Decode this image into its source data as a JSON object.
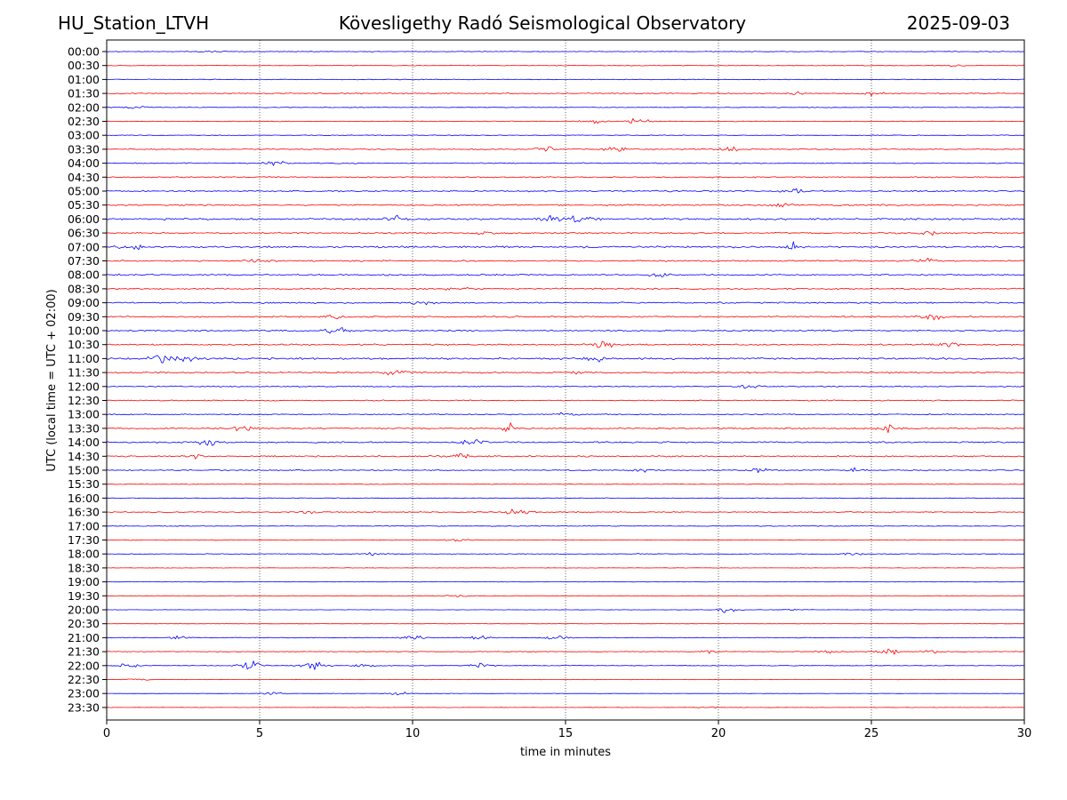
{
  "header": {
    "station": "HU_Station_LTVH",
    "title": "Kövesligethy Radó Seismological Observatory",
    "date": "2025-09-03"
  },
  "chart_data": {
    "type": "line",
    "subtype": "helicorder",
    "title": "Kövesligethy Radó Seismological Observatory",
    "xlabel": "time in minutes",
    "ylabel": "UTC (local time = UTC + 02:00)",
    "xlim": [
      0,
      30
    ],
    "x_ticks": [
      "0",
      "5",
      "10",
      "15",
      "20",
      "25",
      "30"
    ],
    "x_tick_values": [
      0,
      5,
      10,
      15,
      20,
      25,
      30
    ],
    "grid": "vertical dotted at each x tick",
    "row_labels": [
      "00:00",
      "00:30",
      "01:00",
      "01:30",
      "02:00",
      "02:30",
      "03:00",
      "03:30",
      "04:00",
      "04:30",
      "05:00",
      "05:30",
      "06:00",
      "06:30",
      "07:00",
      "07:30",
      "08:00",
      "08:30",
      "09:00",
      "09:30",
      "10:00",
      "10:30",
      "11:00",
      "11:30",
      "12:00",
      "12:30",
      "13:00",
      "13:30",
      "14:00",
      "14:30",
      "15:00",
      "15:30",
      "16:00",
      "16:30",
      "17:00",
      "17:30",
      "18:00",
      "18:30",
      "19:00",
      "19:30",
      "20:00",
      "20:30",
      "21:00",
      "21:30",
      "22:00",
      "22:30",
      "23:00",
      "23:30"
    ],
    "colors": [
      "#0000ff",
      "#ff0000"
    ],
    "color_cycle": "alternating blue, red per row",
    "noise_level": [
      1,
      1,
      1,
      1.5,
      1,
      1,
      1,
      1.5,
      1.5,
      1.5,
      2,
      2,
      2.5,
      2,
      2.5,
      2,
      2,
      2,
      2,
      2,
      2,
      2,
      2.5,
      2,
      1.5,
      1.5,
      1.5,
      2,
      2,
      2,
      1.5,
      1,
      1,
      1.5,
      1,
      1,
      1,
      0.5,
      0.5,
      0.5,
      0.5,
      0.5,
      1,
      1,
      1,
      0.5,
      0.5,
      0.5
    ],
    "events": [
      {
        "row": "00:00",
        "minute": 3.5,
        "amplitude": 1.5
      },
      {
        "row": "00:30",
        "minute": 27.7,
        "amplitude": 1.5
      },
      {
        "row": "01:30",
        "minute": 25.0,
        "amplitude": 3
      },
      {
        "row": "01:30",
        "minute": 22.5,
        "amplitude": 2
      },
      {
        "row": "02:00",
        "minute": 1.0,
        "amplitude": 2
      },
      {
        "row": "02:30",
        "minute": 15.9,
        "amplitude": 4
      },
      {
        "row": "02:30",
        "minute": 17.4,
        "amplitude": 4
      },
      {
        "row": "03:30",
        "minute": 14.3,
        "amplitude": 4
      },
      {
        "row": "03:30",
        "minute": 16.7,
        "amplitude": 5
      },
      {
        "row": "03:30",
        "minute": 20.3,
        "amplitude": 3.5
      },
      {
        "row": "04:00",
        "minute": 5.5,
        "amplitude": 4
      },
      {
        "row": "05:00",
        "minute": 22.5,
        "amplitude": 3
      },
      {
        "row": "05:30",
        "minute": 22.0,
        "amplitude": 3
      },
      {
        "row": "06:00",
        "minute": 9.5,
        "amplitude": 4.5
      },
      {
        "row": "06:00",
        "minute": 14.5,
        "amplitude": 5
      },
      {
        "row": "06:00",
        "minute": 15.5,
        "amplitude": 6
      },
      {
        "row": "06:30",
        "minute": 12.3,
        "amplitude": 3.5
      },
      {
        "row": "06:30",
        "minute": 27.0,
        "amplitude": 3
      },
      {
        "row": "07:00",
        "minute": 0.8,
        "amplitude": 4
      },
      {
        "row": "07:00",
        "minute": 22.4,
        "amplitude": 8
      },
      {
        "row": "07:30",
        "minute": 5.0,
        "amplitude": 3
      },
      {
        "row": "07:30",
        "minute": 26.8,
        "amplitude": 3.5
      },
      {
        "row": "08:00",
        "minute": 18.0,
        "amplitude": 3
      },
      {
        "row": "08:30",
        "minute": 11.5,
        "amplitude": 4
      },
      {
        "row": "09:00",
        "minute": 10.3,
        "amplitude": 4
      },
      {
        "row": "09:30",
        "minute": 7.5,
        "amplitude": 3
      },
      {
        "row": "09:30",
        "minute": 27.0,
        "amplitude": 4
      },
      {
        "row": "10:00",
        "minute": 7.5,
        "amplitude": 5
      },
      {
        "row": "10:30",
        "minute": 16.2,
        "amplitude": 6
      },
      {
        "row": "10:30",
        "minute": 27.5,
        "amplitude": 3
      },
      {
        "row": "11:00",
        "minute": 1.8,
        "amplitude": 6
      },
      {
        "row": "11:00",
        "minute": 2.7,
        "amplitude": 4
      },
      {
        "row": "11:00",
        "minute": 16.0,
        "amplitude": 4
      },
      {
        "row": "11:30",
        "minute": 9.5,
        "amplitude": 6
      },
      {
        "row": "11:30",
        "minute": 15.3,
        "amplitude": 4
      },
      {
        "row": "12:00",
        "minute": 21.0,
        "amplitude": 3
      },
      {
        "row": "13:00",
        "minute": 15.0,
        "amplitude": 3
      },
      {
        "row": "13:30",
        "minute": 13.1,
        "amplitude": 14
      },
      {
        "row": "13:30",
        "minute": 4.5,
        "amplitude": 4
      },
      {
        "row": "13:30",
        "minute": 25.5,
        "amplitude": 6
      },
      {
        "row": "14:00",
        "minute": 3.3,
        "amplitude": 6
      },
      {
        "row": "14:00",
        "minute": 12.0,
        "amplitude": 5
      },
      {
        "row": "14:30",
        "minute": 2.9,
        "amplitude": 8
      },
      {
        "row": "14:30",
        "minute": 11.5,
        "amplitude": 4
      },
      {
        "row": "15:00",
        "minute": 17.5,
        "amplitude": 3
      },
      {
        "row": "15:00",
        "minute": 21.3,
        "amplitude": 3.5
      },
      {
        "row": "15:00",
        "minute": 24.5,
        "amplitude": 3
      },
      {
        "row": "16:30",
        "minute": 13.5,
        "amplitude": 7
      },
      {
        "row": "16:30",
        "minute": 6.5,
        "amplitude": 2.5
      },
      {
        "row": "17:30",
        "minute": 11.5,
        "amplitude": 2
      },
      {
        "row": "18:00",
        "minute": 8.8,
        "amplitude": 2
      },
      {
        "row": "18:00",
        "minute": 24.3,
        "amplitude": 2.5
      },
      {
        "row": "19:30",
        "minute": 11.5,
        "amplitude": 1.5
      },
      {
        "row": "20:00",
        "minute": 20.3,
        "amplitude": 4
      },
      {
        "row": "20:00",
        "minute": 22.5,
        "amplitude": 2
      },
      {
        "row": "21:00",
        "minute": 10.0,
        "amplitude": 5
      },
      {
        "row": "21:00",
        "minute": 14.7,
        "amplitude": 5
      },
      {
        "row": "21:00",
        "minute": 2.4,
        "amplitude": 3
      },
      {
        "row": "21:00",
        "minute": 12.2,
        "amplitude": 3
      },
      {
        "row": "21:30",
        "minute": 19.7,
        "amplitude": 4
      },
      {
        "row": "21:30",
        "minute": 23.5,
        "amplitude": 4
      },
      {
        "row": "21:30",
        "minute": 25.5,
        "amplitude": 5
      },
      {
        "row": "21:30",
        "minute": 27.0,
        "amplitude": 4
      },
      {
        "row": "22:00",
        "minute": 4.7,
        "amplitude": 7
      },
      {
        "row": "22:00",
        "minute": 6.8,
        "amplitude": 6
      },
      {
        "row": "22:00",
        "minute": 8.5,
        "amplitude": 5
      },
      {
        "row": "22:00",
        "minute": 12.2,
        "amplitude": 4
      },
      {
        "row": "22:00",
        "minute": 0.7,
        "amplitude": 3
      },
      {
        "row": "22:30",
        "minute": 1.0,
        "amplitude": 2
      },
      {
        "row": "23:00",
        "minute": 5.4,
        "amplitude": 2.5
      },
      {
        "row": "23:00",
        "minute": 9.6,
        "amplitude": 2.5
      },
      {
        "row": "23:30",
        "minute": 19.7,
        "amplitude": 2
      }
    ]
  }
}
